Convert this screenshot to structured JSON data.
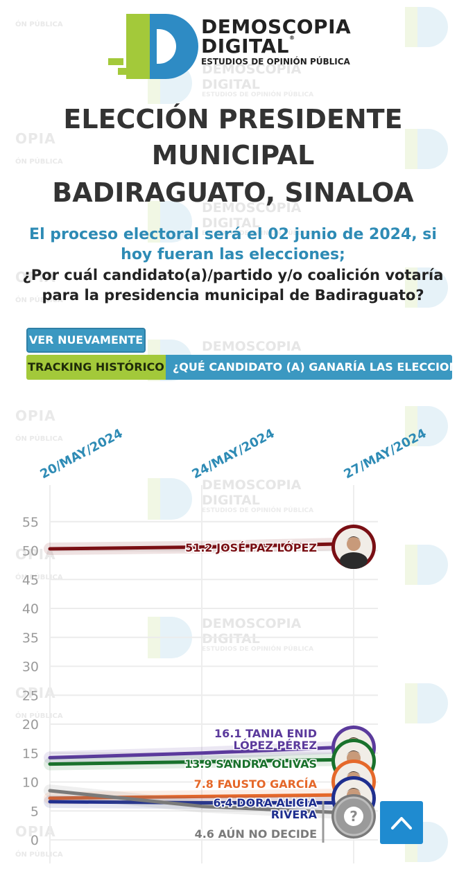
{
  "brand": {
    "line1": "DEMOSCOPIA",
    "line2": "DIGITAL",
    "line3": "ESTUDIOS DE OPINIÓN PÚBLICA",
    "mark": "®",
    "watermark_left_a": "OPIA",
    "watermark_left_b": "ÓN PÚBLICA",
    "colors": {
      "green": "#a3c93a",
      "blue": "#2e8bc4"
    }
  },
  "header": {
    "title_lines": [
      "ELECCIÓN PRESIDENTE",
      "MUNICIPAL",
      "BADIRAGUATO, SINALOA"
    ],
    "subtitle_lines": [
      "El proceso electoral será el 02 junio de 2024, si",
      "hoy fueran las elecciones;"
    ],
    "question_lines": [
      "¿Por cuál candidato(a)/partido y/o coalición votaría",
      "para la presidencia municipal de Badiraguato?"
    ]
  },
  "controls": {
    "again_label": "VER NUEVAMENTE",
    "tracking_label": "TRACKING HISTÓRICO",
    "question_tab_label": "¿QUÉ CANDIDATO (A) GANARÍA LAS ELECCIONES A"
  },
  "chart_data": {
    "type": "line",
    "title": "",
    "xlabel": "",
    "ylabel": "",
    "categories": [
      "20/MAY/2024",
      "24/MAY/2024",
      "27/MAY/2024"
    ],
    "ylim": [
      0,
      55
    ],
    "yticks": [
      0,
      5,
      10,
      15,
      20,
      25,
      30,
      35,
      40,
      45,
      50,
      55
    ],
    "grid": true,
    "series": [
      {
        "name": "JOSÉ PAZ LÓPEZ",
        "values": [
          50.3,
          50.6,
          51.2
        ],
        "color": "#7a0f14",
        "label_value": "51.2",
        "label_lines": [
          "JOSÉ PAZ LÓPEZ"
        ],
        "icon": "candidate-photo"
      },
      {
        "name": "TANIA ENID LÓPEZ PÉREZ",
        "values": [
          14.2,
          15.0,
          16.1
        ],
        "color": "#5b3a9c",
        "label_value": "16.1",
        "label_lines": [
          "TANIA ENID",
          "LÓPEZ PÉREZ"
        ],
        "icon": "candidate-photo"
      },
      {
        "name": "SANDRA OLIVAS",
        "values": [
          13.1,
          13.5,
          13.9
        ],
        "color": "#19712c",
        "label_value": "13.9",
        "label_lines": [
          "SANDRA OLIVAS"
        ],
        "icon": "candidate-photo"
      },
      {
        "name": "FAUSTO GARCÍA",
        "values": [
          7.2,
          7.5,
          7.8
        ],
        "color": "#e5682a",
        "label_value": "7.8",
        "label_lines": [
          "FAUSTO GARCÍA"
        ],
        "icon": "candidate-photo"
      },
      {
        "name": "DORA ALICIA RIVERA",
        "values": [
          6.6,
          6.4,
          6.4
        ],
        "color": "#1f2f8f",
        "label_value": "6.4",
        "label_lines": [
          "DORA ALICIA",
          "RIVERA"
        ],
        "icon": "candidate-photo"
      },
      {
        "name": "AÚN NO DECIDE",
        "values": [
          8.5,
          5.8,
          4.6
        ],
        "color": "#7a7a7a",
        "label_value": "4.6",
        "label_lines": [
          "AÚN NO DECIDE"
        ],
        "icon": "question-mark"
      }
    ]
  },
  "scroll_top": {
    "icon": "chevron-up-icon",
    "color": "#1f8bd0"
  }
}
